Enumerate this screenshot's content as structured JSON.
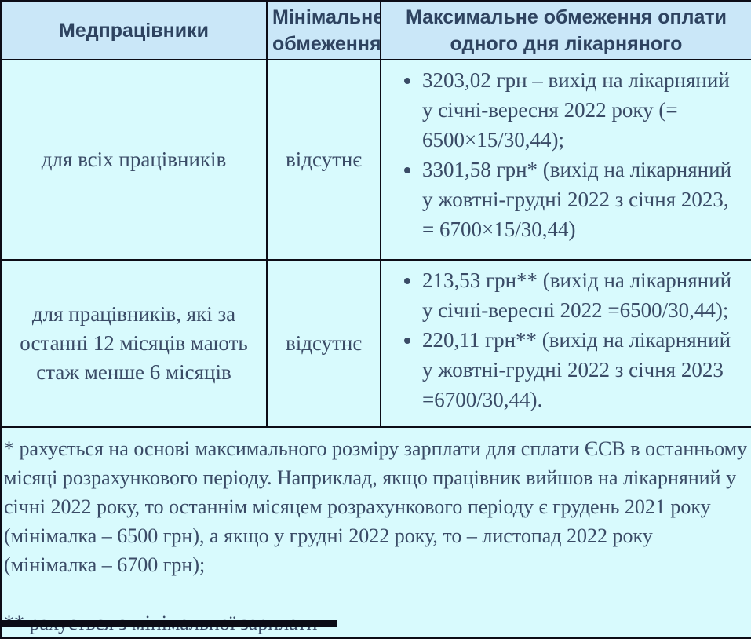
{
  "table": {
    "header": {
      "col1": "Медпрацівники",
      "col2": "Мінімальне обмеження",
      "col3": "Максимальне обмеження оплати одного дня лікарняного"
    },
    "rows": [
      {
        "name": "для всіх працівників",
        "min_limit": "відсутнє",
        "max_items": [
          "3203,02 грн – вихід на лікарняний у січні-вересня 2022 року (= 6500×15/30,44);",
          "3301,58 грн* (вихід на лікарняний у жовтні-грудні 2022 з січня 2023, = 6700×15/30,44)"
        ]
      },
      {
        "name": "для працівників, які за останні 12 місяців мають стаж менше 6 місяців",
        "min_limit": "відсутнє",
        "max_items": [
          "213,53 грн** (вихід на лікарняний у січні-вересні 2022 =6500/30,44);",
          "220,11 грн** (вихід на лікарняний у жовтні-грудні 2022 з січня 2023 =6700/30,44)."
        ]
      }
    ],
    "footnotes": [
      "* рахується на основі максимального розміру зарплати для сплати ЄСВ в останньому місяці розрахункового періоду. Наприклад, якщо працівник вийшов на лікарняний у січні 2022 року, то останнім місяцем розрахункового періоду є грудень 2021 року (мінімалка – 6500 грн), а якщо у грудні 2022 року, то – листопад  2022 року (мінімалка – 6700 грн);",
      "** рахується з мінімальної зарплати"
    ]
  },
  "colors": {
    "header_bg": "#cae7f8",
    "body_bg": "#d8fafd",
    "border": "#0c0c16",
    "text": "#3a4b66"
  }
}
